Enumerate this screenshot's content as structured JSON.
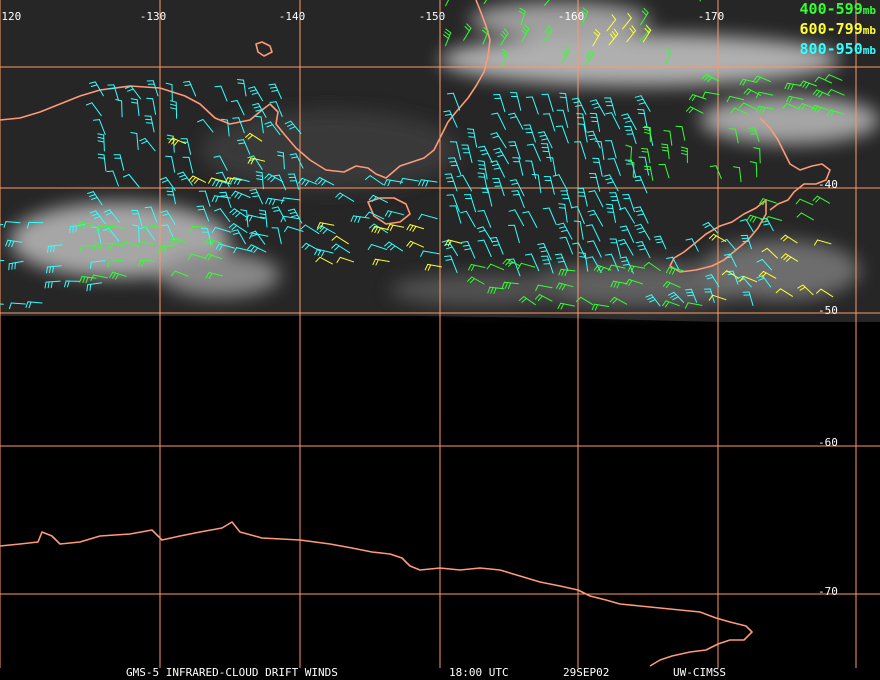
{
  "map": {
    "longitude_labels": [
      "-120",
      "-130",
      "-140",
      "-150",
      "-160",
      "-170"
    ],
    "latitude_labels": [
      "-40",
      "-50",
      "-60",
      "-70"
    ]
  },
  "legend": [
    {
      "range": "400-599",
      "unit": "mb",
      "color": "#33ff33"
    },
    {
      "range": "600-799",
      "unit": "mb",
      "color": "#ffff33"
    },
    {
      "range": "800-950",
      "unit": "mb",
      "color": "#33ffff"
    }
  ],
  "colors": {
    "grid": "#ff9966",
    "coastline": "#ff9977",
    "background": "#000000",
    "satellite": "#2a2a2a"
  },
  "footer": {
    "product": "GMS-5 INFRARED-CLOUD DRIFT WINDS",
    "time": "18:00 UTC",
    "date": "29SEP02",
    "source": "UW-CIMSS"
  }
}
